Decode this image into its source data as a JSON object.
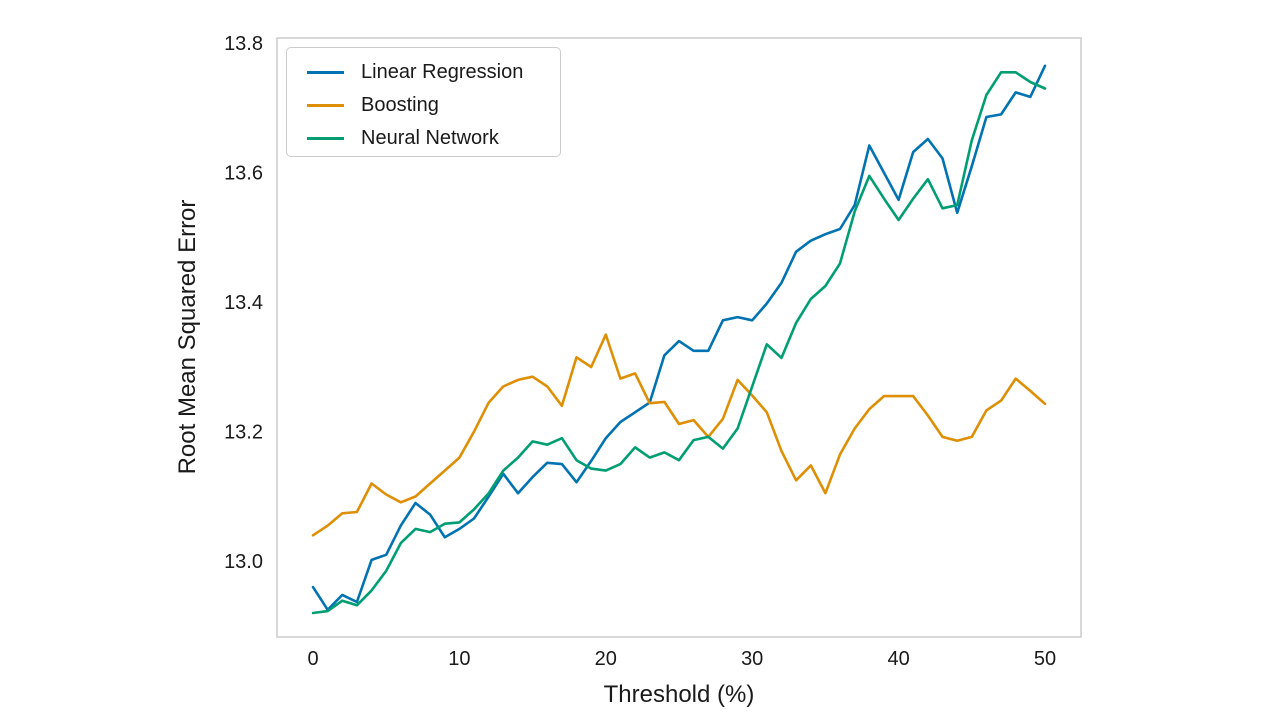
{
  "figure": {
    "background_color": "#ffffff",
    "spine_color": "#cccccc",
    "text_color": "#1a1a1a"
  },
  "chart_data": {
    "type": "line",
    "title": "",
    "xlabel": "Threshold (%)",
    "ylabel": "Root Mean Squared Error",
    "xlim": [
      -2.46,
      52.46
    ],
    "ylim": [
      12.883,
      13.808
    ],
    "xticks": [
      0,
      10,
      20,
      30,
      40,
      50
    ],
    "yticks": [
      13.0,
      13.2,
      13.4,
      13.6,
      13.8
    ],
    "grid": false,
    "legend_position": "upper left",
    "x": [
      0,
      1,
      2,
      3,
      4,
      5,
      6,
      7,
      8,
      9,
      10,
      11,
      12,
      13,
      14,
      15,
      16,
      17,
      18,
      19,
      20,
      21,
      22,
      23,
      24,
      25,
      26,
      27,
      28,
      29,
      30,
      31,
      32,
      33,
      34,
      35,
      36,
      37,
      38,
      39,
      40,
      41,
      42,
      43,
      44,
      45,
      46,
      47,
      48,
      49,
      50
    ],
    "series": [
      {
        "name": "Linear Regression",
        "color": "#0173b2",
        "values": [
          12.96,
          12.925,
          12.948,
          12.937,
          13.002,
          13.01,
          13.055,
          13.09,
          13.072,
          13.037,
          13.05,
          13.066,
          13.1,
          13.135,
          13.105,
          13.13,
          13.152,
          13.15,
          13.122,
          13.155,
          13.19,
          13.215,
          13.23,
          13.245,
          13.318,
          13.34,
          13.325,
          13.325,
          13.372,
          13.377,
          13.372,
          13.398,
          13.43,
          13.478,
          13.495,
          13.505,
          13.513,
          13.55,
          13.642,
          13.6,
          13.558,
          13.632,
          13.652,
          13.622,
          13.538,
          13.61,
          13.686,
          13.69,
          13.724,
          13.717,
          13.765
        ]
      },
      {
        "name": "Boosting",
        "color": "#de8f05",
        "values": [
          13.04,
          13.055,
          13.074,
          13.076,
          13.12,
          13.103,
          13.091,
          13.1,
          13.12,
          13.14,
          13.16,
          13.2,
          13.245,
          13.27,
          13.28,
          13.285,
          13.27,
          13.24,
          13.315,
          13.3,
          13.35,
          13.282,
          13.29,
          13.244,
          13.246,
          13.212,
          13.218,
          13.192,
          13.22,
          13.28,
          13.256,
          13.23,
          13.17,
          13.125,
          13.148,
          13.105,
          13.165,
          13.205,
          13.235,
          13.255,
          13.255,
          13.255,
          13.225,
          13.192,
          13.186,
          13.192,
          13.233,
          13.248,
          13.282,
          13.263,
          13.243
        ]
      },
      {
        "name": "Neural Network",
        "color": "#029e73",
        "values": [
          12.92,
          12.923,
          12.939,
          12.932,
          12.955,
          12.985,
          13.028,
          13.05,
          13.045,
          13.058,
          13.06,
          13.08,
          13.105,
          13.14,
          13.16,
          13.185,
          13.18,
          13.19,
          13.156,
          13.143,
          13.14,
          13.15,
          13.176,
          13.16,
          13.168,
          13.156,
          13.187,
          13.192,
          13.174,
          13.205,
          13.27,
          13.335,
          13.314,
          13.368,
          13.405,
          13.425,
          13.46,
          13.54,
          13.595,
          13.56,
          13.527,
          13.56,
          13.59,
          13.545,
          13.55,
          13.65,
          13.72,
          13.755,
          13.755,
          13.74,
          13.73
        ]
      }
    ]
  }
}
